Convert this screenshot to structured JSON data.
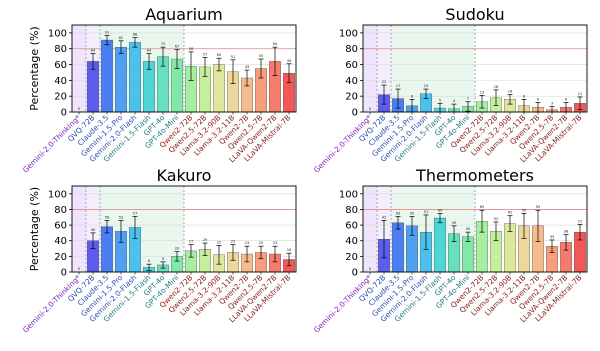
{
  "figure": {
    "ylabel": "Percentage (%)"
  },
  "colors": {
    "axis": "#000000",
    "grid": "#d9d9d9",
    "ref_line": "#e38c8c",
    "vline": "#8a8aa0",
    "shade_purple": "#efe4fb",
    "shade_green": "#e9f7ee",
    "bars": [
      "#8f6cf0",
      "#5d5cee",
      "#4b7ef2",
      "#4fa0f0",
      "#4ac2ec",
      "#4ed6d6",
      "#67e0c0",
      "#82e8a8",
      "#a6eea0",
      "#c4ef9c",
      "#dfe79c",
      "#efd69a",
      "#f5bb8c",
      "#f79d7c",
      "#f57c6c",
      "#f25858"
    ],
    "label_groups": [
      "#7d1fbe",
      "#2a4fb6",
      "#1f7a80",
      "#8a1d18"
    ]
  },
  "models": [
    "Gemini-2.0-Thinking*",
    "QVQ-72B",
    "Claude-3.5",
    "Gemini-1.5-Pro",
    "Gemini-2.0-Flash",
    "Gemini-1.5-Flash",
    "GPT-4o",
    "GPT-4o-Mini",
    "Qwen2-72B",
    "Qwen2.5-72B",
    "Llama-3.2-90B",
    "Llama-3.2-11B",
    "Qwen2-7B",
    "Qwen2.5-7B",
    "LLaVA-Qwen2-7B",
    "LLaVA-Mistral-7B"
  ],
  "chart_data": [
    {
      "type": "bar",
      "title": "Aquarium",
      "ylim": [
        0,
        110
      ],
      "yticks": [
        0,
        20,
        40,
        60,
        80,
        100
      ],
      "ref_line": 80,
      "values": [
        0,
        64,
        91,
        82,
        88,
        64,
        70,
        67,
        58,
        57,
        60,
        51,
        43,
        55,
        64,
        49
      ],
      "errors": [
        0,
        10,
        6,
        8,
        6,
        10,
        12,
        12,
        18,
        12,
        8,
        15,
        10,
        12,
        18,
        12
      ],
      "show_ylabel": true
    },
    {
      "type": "bar",
      "title": "Sudoku",
      "ylim": [
        0,
        110
      ],
      "yticks": [
        0,
        20,
        40,
        60,
        80,
        100
      ],
      "ref_line": 80,
      "values": [
        0,
        22,
        17,
        8,
        23,
        5,
        4,
        7,
        13,
        18,
        16,
        8,
        6,
        3,
        6,
        11
      ],
      "errors": [
        0,
        12,
        12,
        8,
        6,
        6,
        6,
        6,
        8,
        10,
        6,
        8,
        6,
        4,
        6,
        8
      ],
      "show_ylabel": false
    },
    {
      "type": "bar",
      "title": "Kakuro",
      "ylim": [
        0,
        110
      ],
      "yticks": [
        0,
        20,
        40,
        60,
        80,
        100
      ],
      "ref_line": 80,
      "values": [
        0,
        40,
        58,
        52,
        57,
        6,
        9,
        20,
        27,
        29,
        22,
        25,
        23,
        25,
        23,
        16
      ],
      "errors": [
        0,
        10,
        8,
        14,
        14,
        4,
        4,
        6,
        8,
        8,
        12,
        10,
        10,
        8,
        10,
        8
      ],
      "show_ylabel": true
    },
    {
      "type": "bar",
      "title": "Thermometers",
      "ylim": [
        0,
        110
      ],
      "yticks": [
        0,
        20,
        40,
        60,
        80,
        100
      ],
      "ref_line": 80,
      "values": [
        0,
        42,
        63,
        59,
        51,
        69,
        49,
        45,
        65,
        52,
        62,
        59,
        59,
        33,
        38,
        51
      ],
      "errors": [
        0,
        24,
        8,
        12,
        22,
        6,
        10,
        6,
        14,
        12,
        10,
        16,
        20,
        8,
        10,
        10
      ],
      "show_ylabel": false
    }
  ]
}
